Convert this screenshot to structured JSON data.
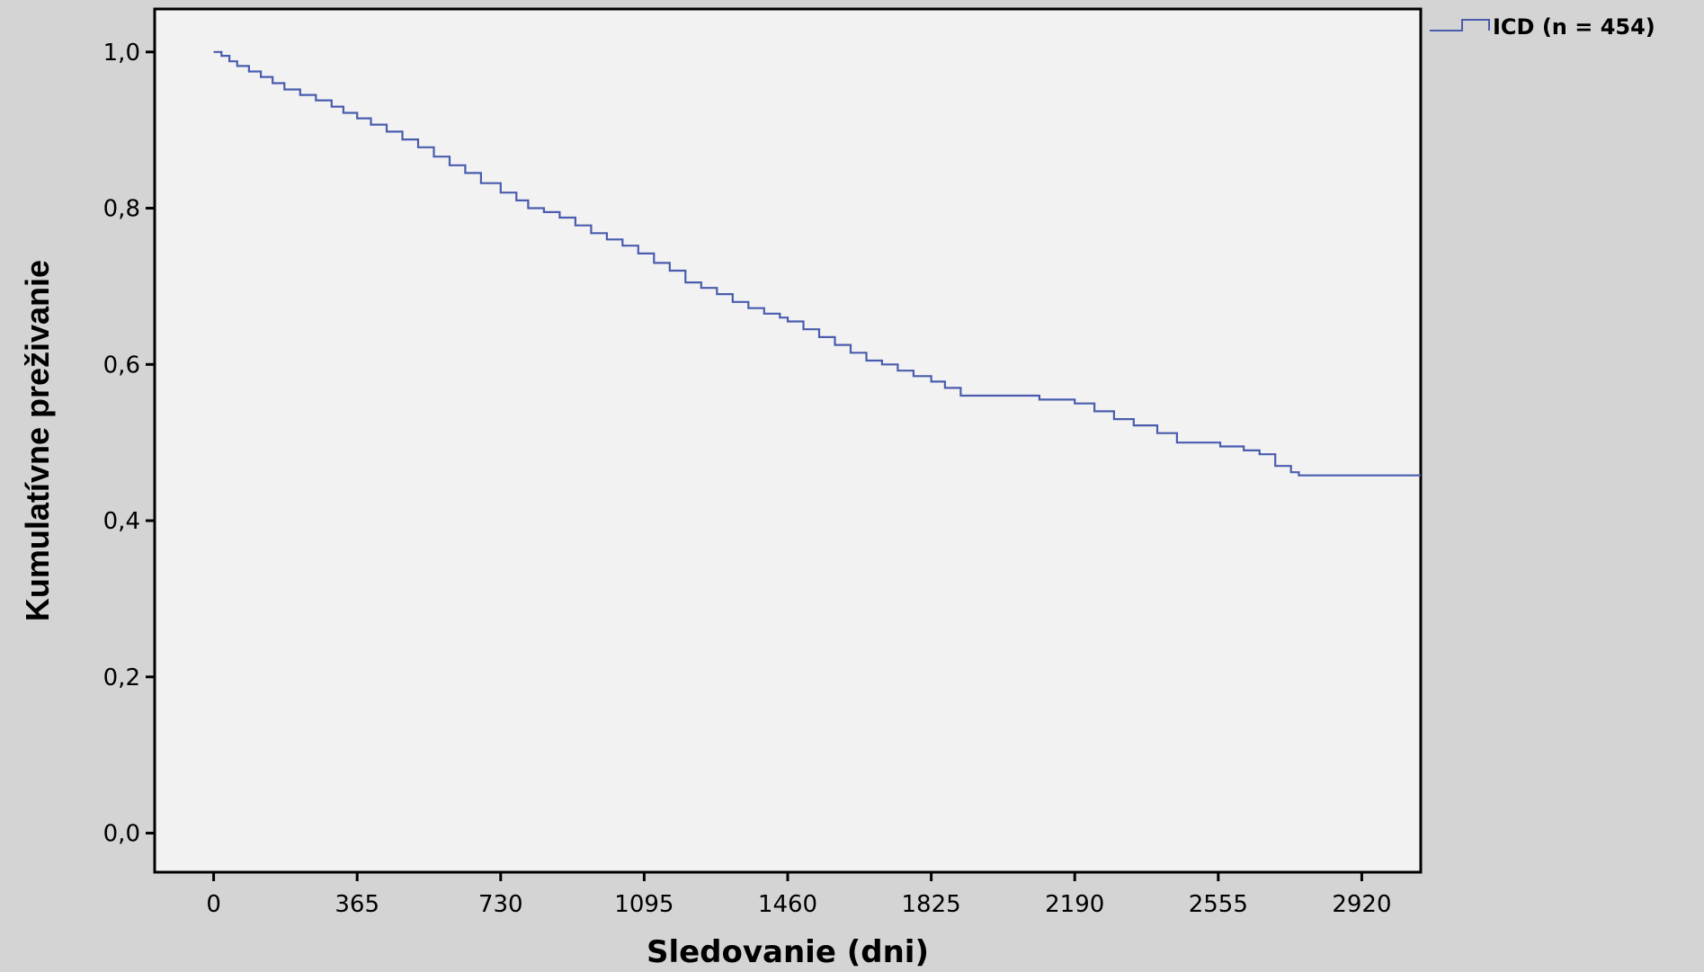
{
  "chart_data": {
    "type": "line",
    "step": true,
    "title": "",
    "xlabel": "Sledovanie (dni)",
    "ylabel": "Kumulatívne preživanie",
    "xlim": [
      -150,
      3070
    ],
    "ylim": [
      -0.05,
      1.055
    ],
    "x_ticks": [
      0,
      365,
      730,
      1095,
      1460,
      1825,
      2190,
      2555,
      2920
    ],
    "x_tick_labels": [
      "0",
      "365",
      "730",
      "1095",
      "1460",
      "1825",
      "2190",
      "2555",
      "2920"
    ],
    "y_ticks": [
      0,
      0.2,
      0.4,
      0.6,
      0.8,
      1.0
    ],
    "y_tick_labels": [
      "0,0",
      "0,2",
      "0,4",
      "0,6",
      "0,8",
      "1,0"
    ],
    "grid": false,
    "legend_position": "outside-top-right",
    "colors": {
      "series": "#4a5cae",
      "plot_bg": "#f2f2f2",
      "page_bg": "#d4d4d4",
      "axis": "#000000"
    },
    "series": [
      {
        "name": "ICD (n = 454)",
        "x": [
          0,
          20,
          40,
          60,
          90,
          120,
          150,
          180,
          220,
          260,
          300,
          330,
          365,
          400,
          440,
          480,
          520,
          560,
          600,
          640,
          680,
          730,
          770,
          800,
          840,
          880,
          920,
          960,
          1000,
          1040,
          1080,
          1120,
          1160,
          1200,
          1240,
          1280,
          1320,
          1360,
          1400,
          1440,
          1460,
          1500,
          1540,
          1580,
          1620,
          1660,
          1700,
          1740,
          1780,
          1825,
          1860,
          1900,
          1940,
          1980,
          2000,
          2050,
          2100,
          2150,
          2190,
          2240,
          2290,
          2340,
          2400,
          2450,
          2500,
          2560,
          2620,
          2660,
          2700,
          2740,
          2760,
          2800,
          2850,
          2900,
          2950,
          3000,
          3070
        ],
        "y": [
          1.0,
          0.995,
          0.988,
          0.982,
          0.975,
          0.968,
          0.96,
          0.952,
          0.945,
          0.938,
          0.93,
          0.922,
          0.915,
          0.907,
          0.898,
          0.888,
          0.878,
          0.866,
          0.855,
          0.845,
          0.832,
          0.82,
          0.81,
          0.8,
          0.795,
          0.788,
          0.778,
          0.768,
          0.76,
          0.752,
          0.742,
          0.73,
          0.72,
          0.705,
          0.698,
          0.69,
          0.68,
          0.672,
          0.665,
          0.66,
          0.655,
          0.645,
          0.635,
          0.625,
          0.615,
          0.605,
          0.6,
          0.592,
          0.585,
          0.578,
          0.57,
          0.56,
          0.56,
          0.56,
          0.56,
          0.56,
          0.555,
          0.555,
          0.55,
          0.54,
          0.53,
          0.522,
          0.512,
          0.5,
          0.5,
          0.495,
          0.49,
          0.485,
          0.47,
          0.462,
          0.458,
          0.458,
          0.458,
          0.458,
          0.458,
          0.458,
          0.458
        ]
      }
    ]
  }
}
